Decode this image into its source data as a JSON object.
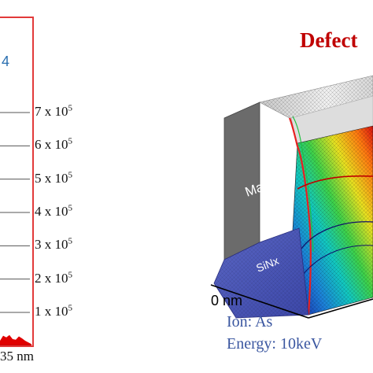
{
  "left_panel": {
    "fragment_text": "4",
    "x_label": "35 nm",
    "ytick_labels": [
      {
        "base": "7 x 10",
        "exp": "5",
        "value": 700000
      },
      {
        "base": "6 x 10",
        "exp": "5",
        "value": 600000
      },
      {
        "base": "5 x 10",
        "exp": "5",
        "value": 500000
      },
      {
        "base": "4 x 10",
        "exp": "5",
        "value": 400000
      },
      {
        "base": "3 x 10",
        "exp": "5",
        "value": 300000
      },
      {
        "base": "2 x 10",
        "exp": "5",
        "value": 200000
      },
      {
        "base": "1 x 10",
        "exp": "5",
        "value": 100000
      }
    ],
    "frame_color": "#e23a3a",
    "fill_color": "#e00000",
    "fragment_color": "#2a6fb0"
  },
  "right_panel": {
    "title": "Defect",
    "title_color": "#c00000",
    "mask_label": "Mask",
    "layer_label": "SiNx",
    "origin_label": "0 nm",
    "ion_label": "Ion: As",
    "energy_label": "Energy: 10keV",
    "info_color": "#3a56a0",
    "mask_color": "#6b6b6b",
    "sinx_color": "#4a57b8"
  },
  "chart_data": [
    {
      "type": "area",
      "title": "",
      "xlabel": "35 nm",
      "ylabel": "",
      "ylim": [
        0,
        750000
      ],
      "yticks": [
        100000,
        200000,
        300000,
        400000,
        500000,
        600000,
        700000
      ],
      "grid": true,
      "series": [
        {
          "x": [
            0.0,
            0.1,
            0.2,
            0.3,
            0.4,
            0.5,
            0.6,
            0.7,
            0.8,
            0.9,
            1.0
          ],
          "values": [
            15000,
            30000,
            25000,
            32000,
            20000,
            18000,
            28000,
            22000,
            15000,
            10000,
            5000
          ]
        }
      ]
    },
    {
      "type": "heatmap",
      "title": "Defect",
      "xlabel": "0 nm",
      "ylabel": "",
      "annotations": [
        "Mask",
        "SiNx",
        "Ion: As",
        "Energy: 10keV"
      ]
    }
  ]
}
